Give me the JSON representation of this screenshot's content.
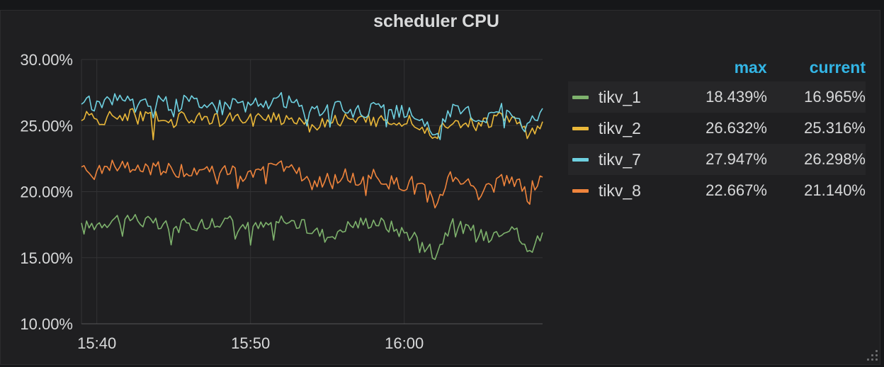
{
  "panel": {
    "title": "scheduler CPU"
  },
  "legend": {
    "headers": {
      "max": "max",
      "current": "current"
    },
    "items": [
      {
        "name": "tikv_1",
        "color": "#7eb26d",
        "max": "18.439%",
        "current": "16.965%"
      },
      {
        "name": "tikv_2",
        "color": "#eab839",
        "max": "26.632%",
        "current": "25.316%"
      },
      {
        "name": "tikv_7",
        "color": "#6ed0e0",
        "max": "27.947%",
        "current": "26.298%"
      },
      {
        "name": "tikv_8",
        "color": "#ef843c",
        "max": "22.667%",
        "current": "21.140%"
      }
    ]
  },
  "chart_data": {
    "type": "line",
    "title": "scheduler CPU",
    "xlabel": "",
    "ylabel": "",
    "x_range": [
      "15:39",
      "16:09"
    ],
    "ylim": [
      10,
      30
    ],
    "y_unit": "%",
    "y_ticks": [
      "30.00%",
      "25.00%",
      "20.00%",
      "15.00%",
      "10.00%"
    ],
    "x_ticks": [
      "15:40",
      "15:50",
      "16:00"
    ],
    "grid": true,
    "legend_position": "right",
    "series": [
      {
        "name": "tikv_1",
        "color": "#7eb26d",
        "x": [
          "15:39",
          "15:40",
          "15:41",
          "15:42",
          "15:43",
          "15:44",
          "15:45",
          "15:46",
          "15:47",
          "15:48",
          "15:49",
          "15:50",
          "15:51",
          "15:52",
          "15:53",
          "15:54",
          "15:55",
          "15:56",
          "15:57",
          "15:58",
          "15:59",
          "16:00",
          "16:01",
          "16:02",
          "16:03",
          "16:04",
          "16:05",
          "16:06",
          "16:07",
          "16:08",
          "16:09"
        ],
        "values": [
          17.2,
          17.6,
          17.9,
          18.1,
          17.8,
          17.4,
          17.3,
          17.5,
          17.6,
          17.8,
          17.7,
          17.2,
          17.4,
          17.9,
          17.6,
          17.1,
          16.6,
          17.3,
          17.6,
          17.8,
          17.4,
          16.9,
          16.6,
          15.3,
          17.5,
          17.2,
          16.7,
          17.0,
          17.6,
          15.4,
          16.9
        ]
      },
      {
        "name": "tikv_2",
        "color": "#eab839",
        "x": [
          "15:39",
          "15:40",
          "15:41",
          "15:42",
          "15:43",
          "15:44",
          "15:45",
          "15:46",
          "15:47",
          "15:48",
          "15:49",
          "15:50",
          "15:51",
          "15:52",
          "15:53",
          "15:54",
          "15:55",
          "15:56",
          "15:57",
          "15:58",
          "15:59",
          "16:00",
          "16:01",
          "16:02",
          "16:03",
          "16:04",
          "16:05",
          "16:06",
          "16:07",
          "16:08",
          "16:09"
        ],
        "values": [
          25.8,
          25.4,
          25.6,
          25.9,
          25.5,
          25.7,
          25.4,
          25.6,
          25.8,
          25.3,
          25.5,
          25.4,
          25.8,
          25.5,
          25.6,
          24.9,
          25.4,
          25.5,
          25.2,
          25.5,
          25.3,
          25.5,
          25.2,
          24.2,
          25.5,
          25.2,
          25.0,
          25.6,
          25.5,
          24.4,
          25.3
        ]
      },
      {
        "name": "tikv_7",
        "color": "#6ed0e0",
        "x": [
          "15:39",
          "15:40",
          "15:41",
          "15:42",
          "15:43",
          "15:44",
          "15:45",
          "15:46",
          "15:47",
          "15:48",
          "15:49",
          "15:50",
          "15:51",
          "15:52",
          "15:53",
          "15:54",
          "15:55",
          "15:56",
          "15:57",
          "15:58",
          "15:59",
          "16:00",
          "16:01",
          "16:02",
          "16:03",
          "16:04",
          "16:05",
          "16:06",
          "16:07",
          "16:08",
          "16:09"
        ],
        "values": [
          26.8,
          26.6,
          27.1,
          26.9,
          26.6,
          26.8,
          26.5,
          26.9,
          26.7,
          26.4,
          26.9,
          26.5,
          26.8,
          27.0,
          26.6,
          25.9,
          26.2,
          26.4,
          26.0,
          26.3,
          25.9,
          26.1,
          25.7,
          23.9,
          26.2,
          26.0,
          25.5,
          26.2,
          26.3,
          24.8,
          26.3
        ]
      },
      {
        "name": "tikv_8",
        "color": "#ef843c",
        "x": [
          "15:39",
          "15:40",
          "15:41",
          "15:42",
          "15:43",
          "15:44",
          "15:45",
          "15:46",
          "15:47",
          "15:48",
          "15:49",
          "15:50",
          "15:51",
          "15:52",
          "15:53",
          "15:54",
          "15:55",
          "15:56",
          "15:57",
          "15:58",
          "15:59",
          "16:00",
          "16:01",
          "16:02",
          "16:03",
          "16:04",
          "16:05",
          "16:06",
          "16:07",
          "16:08",
          "16:09"
        ],
        "values": [
          21.8,
          21.4,
          21.9,
          21.7,
          21.6,
          21.8,
          21.5,
          21.7,
          21.6,
          21.8,
          21.4,
          21.2,
          21.6,
          21.9,
          21.5,
          20.5,
          20.9,
          21.3,
          20.8,
          21.2,
          20.7,
          20.5,
          20.8,
          18.9,
          21.2,
          20.7,
          20.2,
          21.0,
          20.8,
          20.2,
          21.1
        ]
      }
    ]
  }
}
